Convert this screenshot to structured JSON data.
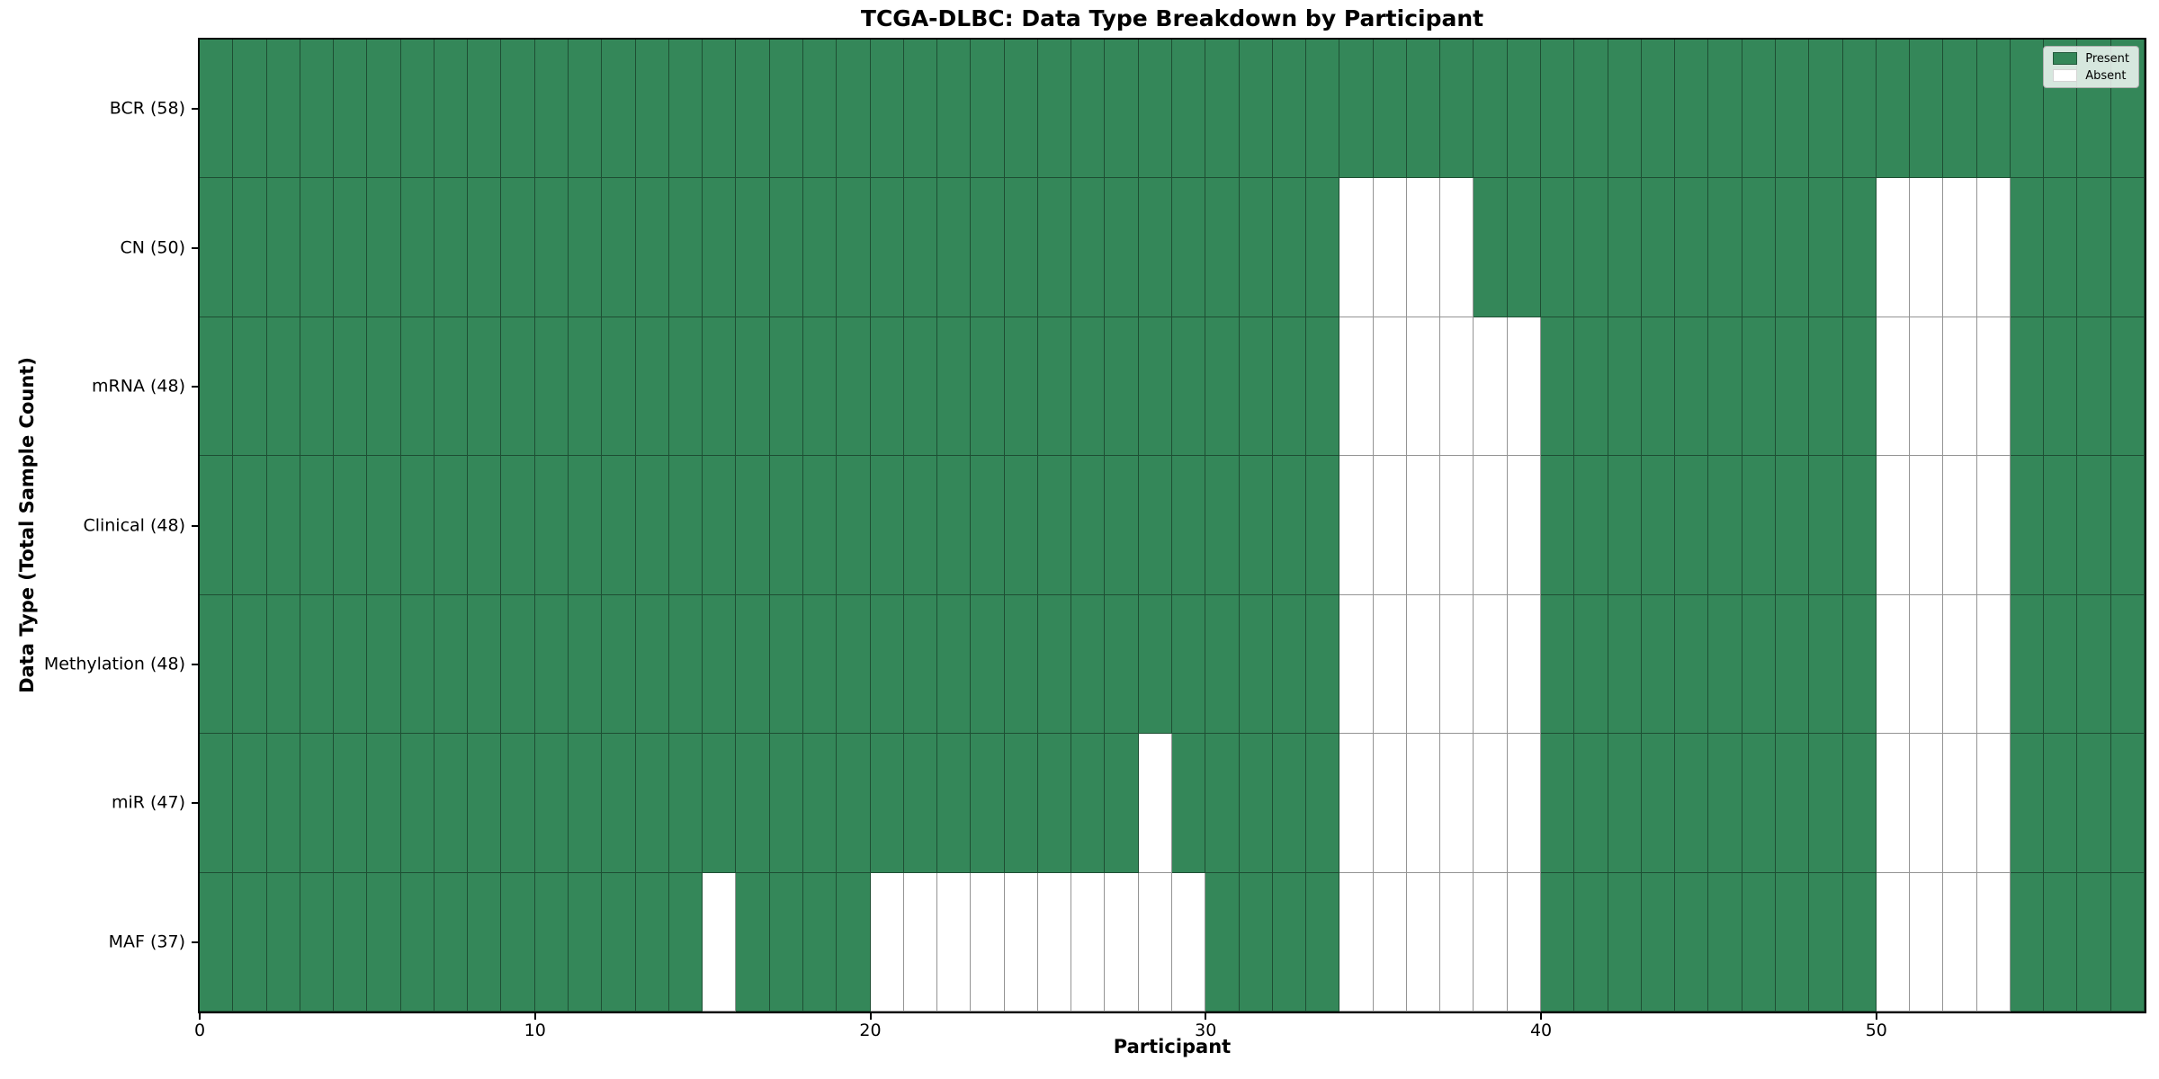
{
  "chart_data": {
    "type": "heatmap",
    "title": "TCGA-DLBC: Data Type Breakdown by Participant",
    "xlabel": "Participant",
    "ylabel": "Data Type (Total Sample Count)",
    "n_participants": 58,
    "x_range": [
      0,
      58
    ],
    "x_ticks": [
      0,
      10,
      20,
      30,
      40,
      50
    ],
    "grid": true,
    "legend_position": "upper right",
    "legend": [
      {
        "label": "Present",
        "color": "#348759"
      },
      {
        "label": "Absent",
        "color": "#ffffff"
      }
    ],
    "colors": {
      "present": "#348759",
      "absent": "#ffffff",
      "gridline": "rgba(0,0,0,0.42)"
    },
    "rows": [
      {
        "label": "BCR (58)",
        "present_count": 58,
        "absent_cols": []
      },
      {
        "label": "CN (50)",
        "present_count": 50,
        "absent_cols": [
          34,
          35,
          36,
          37,
          50,
          51,
          52,
          53
        ]
      },
      {
        "label": "mRNA (48)",
        "present_count": 48,
        "absent_cols": [
          34,
          35,
          36,
          37,
          38,
          39,
          50,
          51,
          52,
          53
        ]
      },
      {
        "label": "Clinical (48)",
        "present_count": 48,
        "absent_cols": [
          34,
          35,
          36,
          37,
          38,
          39,
          50,
          51,
          52,
          53
        ]
      },
      {
        "label": "Methylation (48)",
        "present_count": 48,
        "absent_cols": [
          34,
          35,
          36,
          37,
          38,
          39,
          50,
          51,
          52,
          53
        ]
      },
      {
        "label": "miR (47)",
        "present_count": 47,
        "absent_cols": [
          28,
          34,
          35,
          36,
          37,
          38,
          39,
          50,
          51,
          52,
          53
        ]
      },
      {
        "label": "MAF (37)",
        "present_count": 37,
        "absent_cols": [
          15,
          20,
          21,
          22,
          23,
          24,
          25,
          26,
          27,
          28,
          29,
          34,
          35,
          36,
          37,
          38,
          39,
          50,
          51,
          52,
          53
        ]
      }
    ]
  }
}
